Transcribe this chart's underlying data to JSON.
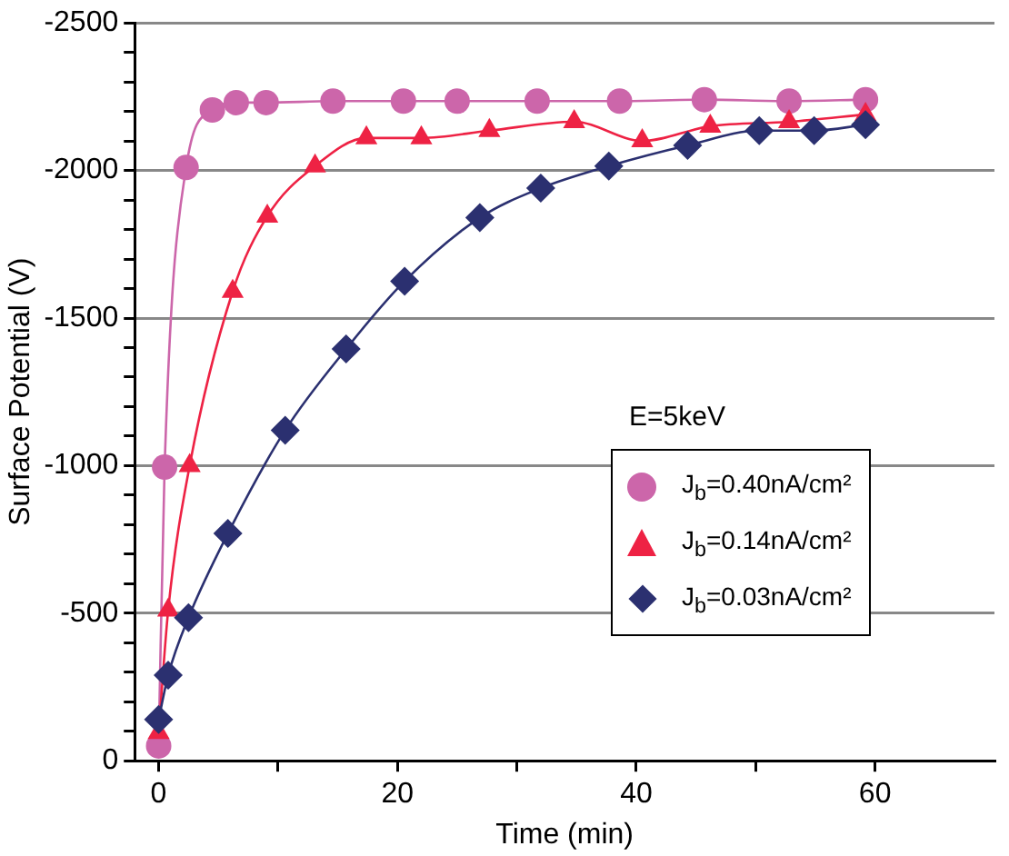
{
  "chart_data": {
    "type": "line",
    "xlabel": "Time (min)",
    "ylabel": "Surface Potential (V)",
    "legend_title": "E=5keV",
    "legend": "right",
    "grid": "y",
    "xlim": [
      -2,
      70
    ],
    "xticks": [
      0,
      {
        "value": 10,
        "label": null
      },
      20,
      {
        "value": 30,
        "label": null
      },
      40,
      {
        "value": 50,
        "label": null
      },
      60
    ],
    "ylim": [
      0,
      -2500
    ],
    "yticks": [
      0,
      {
        "value": -100,
        "label": null
      },
      {
        "value": -200,
        "label": null
      },
      {
        "value": -300,
        "label": null
      },
      {
        "value": -400,
        "label": null
      },
      -500,
      {
        "value": -600,
        "label": null
      },
      {
        "value": -700,
        "label": null
      },
      {
        "value": -800,
        "label": null
      },
      {
        "value": -900,
        "label": null
      },
      -1000,
      {
        "value": -1100,
        "label": null
      },
      {
        "value": -1200,
        "label": null
      },
      {
        "value": -1300,
        "label": null
      },
      {
        "value": -1400,
        "label": null
      },
      -1500,
      {
        "value": -1600,
        "label": null
      },
      {
        "value": -1700,
        "label": null
      },
      {
        "value": -1800,
        "label": null
      },
      {
        "value": -1900,
        "label": null
      },
      -2000,
      {
        "value": -2100,
        "label": null
      },
      {
        "value": -2200,
        "label": null
      },
      {
        "value": -2300,
        "label": null
      },
      {
        "value": -2400,
        "label": null
      },
      -2500
    ],
    "series": [
      {
        "name": "J$_{b}$=0.40nA/cm²",
        "color": "#cc66aa",
        "marker": "circle",
        "x": [
          0,
          0.5,
          2.3,
          4.5,
          6.5,
          9,
          14.6,
          20.5,
          25,
          31.7,
          38.6,
          45.7,
          52.8,
          59.2
        ],
        "values": [
          -50,
          -995,
          -2010,
          -2205,
          -2230,
          -2230,
          -2235,
          -2235,
          -2235,
          -2235,
          -2235,
          -2240,
          -2235,
          -2240
        ]
      },
      {
        "name": "J$_{b}$=0.14nA/cm²",
        "color": "#ee2244",
        "marker": "triangle",
        "x": [
          0,
          0.8,
          2.6,
          6.2,
          9.1,
          13.1,
          17.4,
          22,
          27.7,
          34.8,
          40.5,
          46.2,
          52.8,
          59.2
        ],
        "values": [
          -95,
          -510,
          -1000,
          -1590,
          -1845,
          -2015,
          -2110,
          -2110,
          -2135,
          -2165,
          -2100,
          -2150,
          -2165,
          -2190
        ]
      },
      {
        "name": "J$_{b}$=0.03nA/cm²",
        "color": "#2b3070",
        "marker": "diamond",
        "x": [
          0,
          0.8,
          2.5,
          5.8,
          10.6,
          15.7,
          20.6,
          26.9,
          32,
          37.7,
          44.3,
          50.3,
          54.9,
          59.2
        ],
        "values": [
          -140,
          -290,
          -485,
          -770,
          -1120,
          -1395,
          -1625,
          -1840,
          -1940,
          -2015,
          -2085,
          -2135,
          -2135,
          -2155
        ]
      }
    ]
  }
}
